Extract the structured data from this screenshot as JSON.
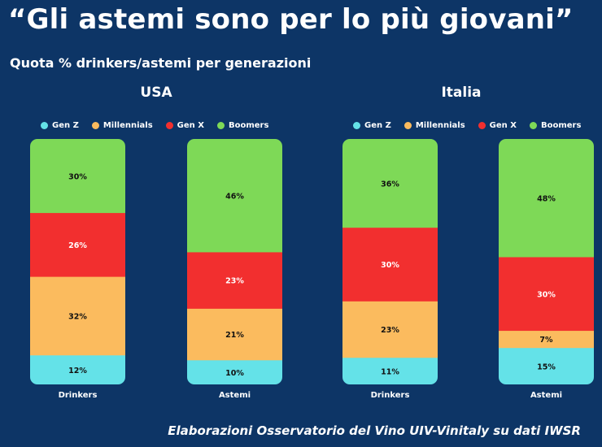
{
  "title": "“Gli astemi sono per lo più giovani”",
  "subtitle": "Quota % drinkers/astemi per generazioni",
  "footer": "Elaborazioni Osservatorio del Vino UIV-Vinitaly su dati IWSR",
  "colors": {
    "Gen Z": "#64e2e8",
    "Millennials": "#fbbb5e",
    "Gen X": "#f22f2f",
    "Boomers": "#7ed957"
  },
  "legend": [
    "Gen Z",
    "Millennials",
    "Gen X",
    "Boomers"
  ],
  "chart_data": [
    {
      "type": "bar",
      "stacked": true,
      "title": "USA",
      "categories": [
        "Drinkers",
        "Astemi"
      ],
      "series": [
        {
          "name": "Gen Z",
          "values": [
            12,
            10
          ]
        },
        {
          "name": "Millennials",
          "values": [
            32,
            21
          ]
        },
        {
          "name": "Gen X",
          "values": [
            26,
            23
          ]
        },
        {
          "name": "Boomers",
          "values": [
            30,
            46
          ]
        }
      ],
      "unit": "%"
    },
    {
      "type": "bar",
      "stacked": true,
      "title": "Italia",
      "categories": [
        "Drinkers",
        "Astemi"
      ],
      "series": [
        {
          "name": "Gen Z",
          "values": [
            11,
            15
          ]
        },
        {
          "name": "Millennials",
          "values": [
            23,
            7
          ]
        },
        {
          "name": "Gen X",
          "values": [
            30,
            30
          ]
        },
        {
          "name": "Boomers",
          "values": [
            36,
            48
          ]
        }
      ],
      "unit": "%"
    }
  ]
}
